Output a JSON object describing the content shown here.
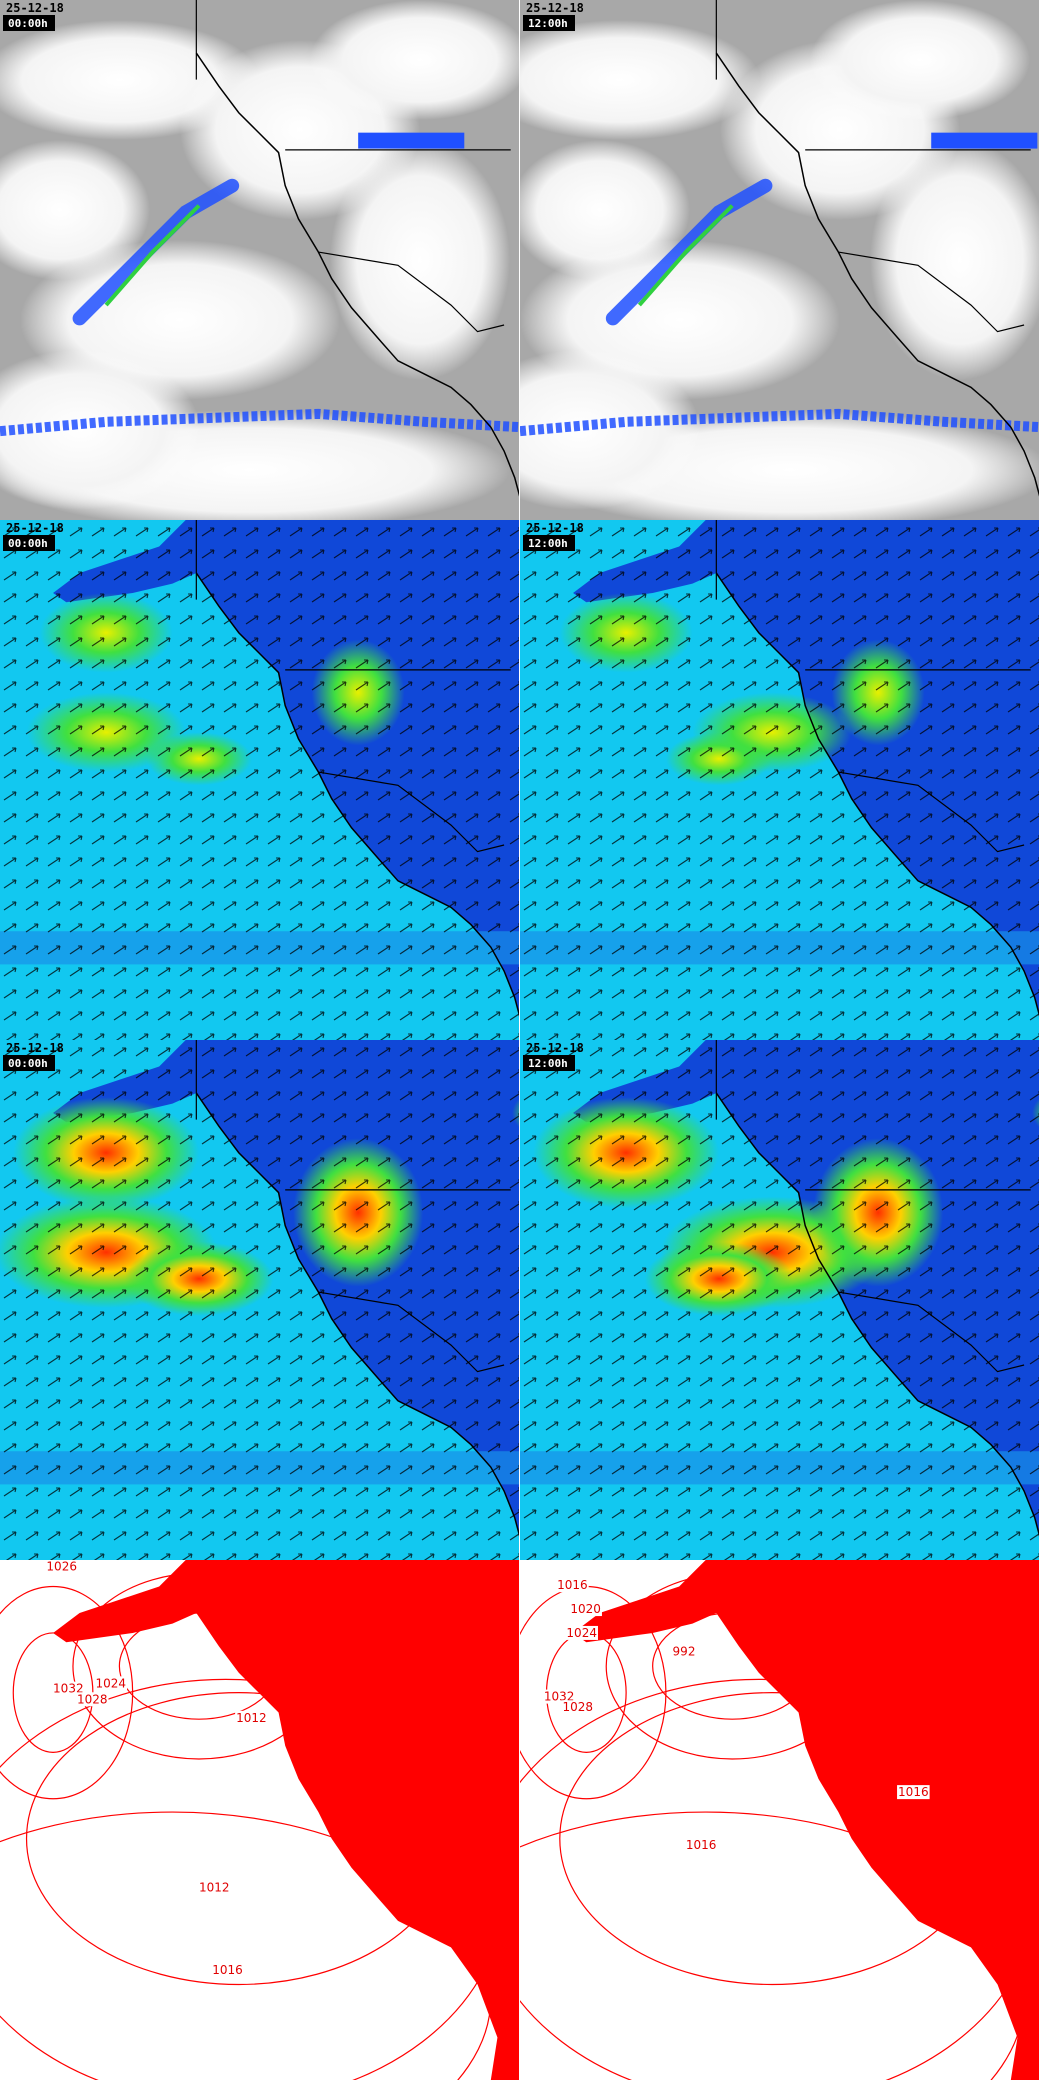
{
  "panels": [
    {
      "date": "25-12-18",
      "time": "00:00h"
    },
    {
      "date": "25-12-18",
      "time": "12:00h"
    },
    {
      "date": "25-12-18",
      "time": "00:00h"
    },
    {
      "date": "25-12-18",
      "time": "12:00h"
    },
    {
      "date": "25-12-18",
      "time": "00:00h"
    },
    {
      "date": "25-12-18",
      "time": "12:00h"
    },
    {
      "isobar_labels": [
        "1026",
        "1032",
        "1028",
        "1024",
        "1012",
        "1012",
        "1016"
      ]
    },
    {
      "isobar_labels": [
        "1016",
        "1020",
        "1024",
        "992",
        "1032",
        "1028",
        "1016",
        "1016"
      ]
    }
  ]
}
